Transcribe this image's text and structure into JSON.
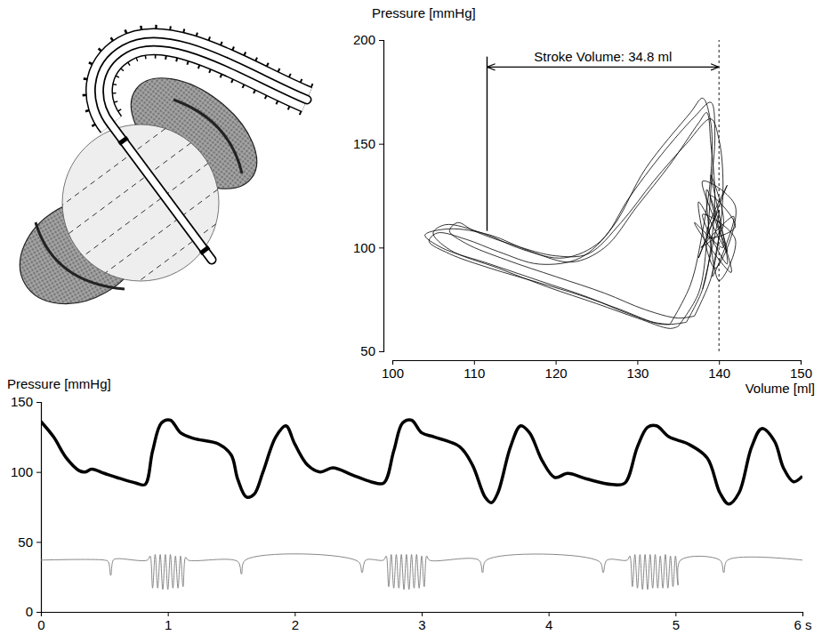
{
  "chart_data": [
    {
      "type": "line",
      "x_label": "Volume [ml]",
      "y_label": "Pressure [mmHg]",
      "xlim": [
        100,
        150
      ],
      "xticks": [
        100,
        110,
        120,
        130,
        140,
        150
      ],
      "ylim": [
        50,
        200
      ],
      "yticks": [
        50,
        100,
        150,
        200
      ],
      "annotation": {
        "text": "Stroke Volume: 34.8 ml",
        "x": [
          111.6,
          140
        ],
        "y": 187
      },
      "vertical_lines": [
        {
          "x": 111.6,
          "y": [
            108,
            192
          ],
          "line_style": "solid"
        },
        {
          "x": 140,
          "y": [
            50,
            200
          ],
          "line_style": "dashed"
        }
      ],
      "series": [
        {
          "color": "#000000",
          "x": [
            136,
            138,
            139,
            139.5,
            139,
            138.5,
            137.5,
            134,
            130,
            126,
            122,
            117,
            112,
            107,
            104,
            106,
            112,
            118,
            124,
            129,
            133,
            136
          ],
          "values": [
            64,
            80,
            100,
            125,
            150,
            165,
            160,
            140,
            120,
            100,
            93,
            98,
            106,
            109,
            106,
            100,
            92,
            84,
            76,
            68,
            63,
            64
          ]
        },
        {
          "color": "#000000",
          "x": [
            135,
            137.5,
            138.5,
            139,
            139.5,
            139,
            137,
            133,
            129,
            125.5,
            121,
            116,
            111,
            106.5,
            105,
            107,
            113,
            119,
            125,
            130,
            134,
            135
          ],
          "values": [
            62,
            78,
            102,
            128,
            155,
            170,
            163,
            145,
            124,
            103,
            95,
            99,
            107,
            111,
            107,
            99,
            90,
            81,
            73,
            66,
            61,
            62
          ]
        },
        {
          "color": "#000000",
          "x": [
            137,
            139,
            140,
            140.5,
            140,
            139,
            136,
            132,
            128,
            124,
            120,
            115,
            110,
            108,
            107,
            109,
            114,
            120,
            126,
            131,
            135,
            137
          ],
          "values": [
            67,
            85,
            105,
            130,
            152,
            162,
            150,
            132,
            112,
            97,
            96,
            101,
            108,
            112,
            108,
            102,
            94,
            86,
            78,
            70,
            66,
            67
          ]
        },
        {
          "color": "#000000",
          "x": [
            134,
            136.5,
            138,
            139,
            139,
            138,
            136.5,
            131,
            127,
            123,
            118,
            113,
            109,
            105.5,
            104.5,
            107,
            112,
            118,
            123,
            128,
            132,
            134
          ],
          "values": [
            63,
            82,
            108,
            135,
            160,
            172,
            165,
            138,
            110,
            95,
            92,
            98,
            104,
            107,
            103,
            97,
            90,
            83,
            77,
            70,
            64,
            63
          ]
        },
        {
          "color": "#000000",
          "x": [
            138,
            140,
            137.5,
            141,
            138.5,
            142,
            139,
            141.5,
            137,
            140.5,
            138,
            142,
            139.5,
            137.5,
            141,
            138.5,
            140,
            142,
            138,
            141,
            139,
            140.5,
            137.8,
            141.8,
            139.2,
            140
          ],
          "values": [
            80,
            118,
            95,
            130,
            105,
            110,
            125,
            88,
            112,
            100,
            132,
            120,
            90,
            122,
            98,
            128,
            84,
            104,
            116,
            92,
            135,
            110,
            100,
            115,
            86,
            105
          ]
        }
      ]
    },
    {
      "type": "line",
      "y_label": "Pressure [mmHg]",
      "xlim": [
        0,
        6
      ],
      "xticks": [
        0,
        1,
        2,
        3,
        4,
        5,
        {
          "value": 6,
          "label": "6 s"
        }
      ],
      "ylim": [
        0,
        150
      ],
      "yticks": [
        0,
        50,
        100,
        150
      ],
      "series": [
        {
          "color": "#000000",
          "x": [
            0,
            0.1,
            0.2,
            0.3,
            0.35,
            0.4,
            0.5,
            0.6,
            0.75,
            0.82,
            0.88,
            0.95,
            1.02,
            1.1,
            1.2,
            1.4,
            1.5,
            1.55,
            1.62,
            1.68,
            1.75,
            1.85,
            1.93,
            2.0,
            2.1,
            2.2,
            2.3,
            2.45,
            2.6,
            2.7,
            2.78,
            2.85,
            2.92,
            3.0,
            3.1,
            3.3,
            3.4,
            3.5,
            3.55,
            3.6,
            3.7,
            3.78,
            3.85,
            3.95,
            4.05,
            4.15,
            4.3,
            4.5,
            4.6,
            4.7,
            4.78,
            4.85,
            4.95,
            5.1,
            5.25,
            5.35,
            5.42,
            5.5,
            5.6,
            5.68,
            5.78,
            5.85,
            5.93,
            6.0
          ],
          "values": [
            136,
            125,
            110,
            101,
            100,
            102,
            99,
            96,
            92,
            91,
            115,
            135,
            137,
            128,
            124,
            120,
            112,
            95,
            82,
            84,
            100,
            125,
            133,
            120,
            105,
            100,
            103,
            98,
            93,
            92,
            115,
            135,
            137,
            128,
            125,
            118,
            105,
            82,
            78,
            85,
            118,
            133,
            128,
            108,
            96,
            99,
            95,
            91,
            92,
            118,
            132,
            133,
            125,
            120,
            110,
            85,
            77,
            85,
            118,
            131,
            122,
            103,
            93,
            97
          ]
        },
        {
          "color": "#888888",
          "x": [
            0,
            0.5,
            0.53,
            0.55,
            0.57,
            0.6,
            0.84,
            0.86,
            0.88,
            0.9,
            0.92,
            0.94,
            0.96,
            0.98,
            1.0,
            1.02,
            1.04,
            1.06,
            1.08,
            1.1,
            1.12,
            1.14,
            1.16,
            1.55,
            1.58,
            1.61,
            2.5,
            2.53,
            2.56,
            2.7,
            2.72,
            2.74,
            2.76,
            2.78,
            2.8,
            2.82,
            2.84,
            2.86,
            2.88,
            2.9,
            2.92,
            2.94,
            2.96,
            2.98,
            3.0,
            3.02,
            3.04,
            3.06,
            3.45,
            3.48,
            3.51,
            4.4,
            4.43,
            4.46,
            4.62,
            4.64,
            4.66,
            4.68,
            4.7,
            4.72,
            4.74,
            4.76,
            4.78,
            4.8,
            4.82,
            4.84,
            4.86,
            4.88,
            4.9,
            4.92,
            4.94,
            4.96,
            4.98,
            5.0,
            5.02,
            5.04,
            5.35,
            5.38,
            5.41,
            6.0
          ],
          "values": [
            37,
            37,
            36,
            26,
            37,
            38,
            37,
            40,
            17,
            41,
            17,
            41,
            16,
            41,
            16,
            41,
            17,
            40,
            17,
            40,
            18,
            39,
            37,
            36,
            27,
            37,
            36,
            28,
            37,
            37,
            40,
            18,
            41,
            17,
            41,
            17,
            41,
            16,
            41,
            16,
            41,
            17,
            41,
            17,
            40,
            18,
            40,
            37,
            37,
            28,
            37,
            36,
            28,
            37,
            37,
            40,
            18,
            41,
            17,
            41,
            16,
            41,
            16,
            41,
            17,
            41,
            17,
            40,
            17,
            41,
            17,
            40,
            18,
            40,
            19,
            37,
            37,
            28,
            37,
            37
          ]
        }
      ]
    }
  ]
}
